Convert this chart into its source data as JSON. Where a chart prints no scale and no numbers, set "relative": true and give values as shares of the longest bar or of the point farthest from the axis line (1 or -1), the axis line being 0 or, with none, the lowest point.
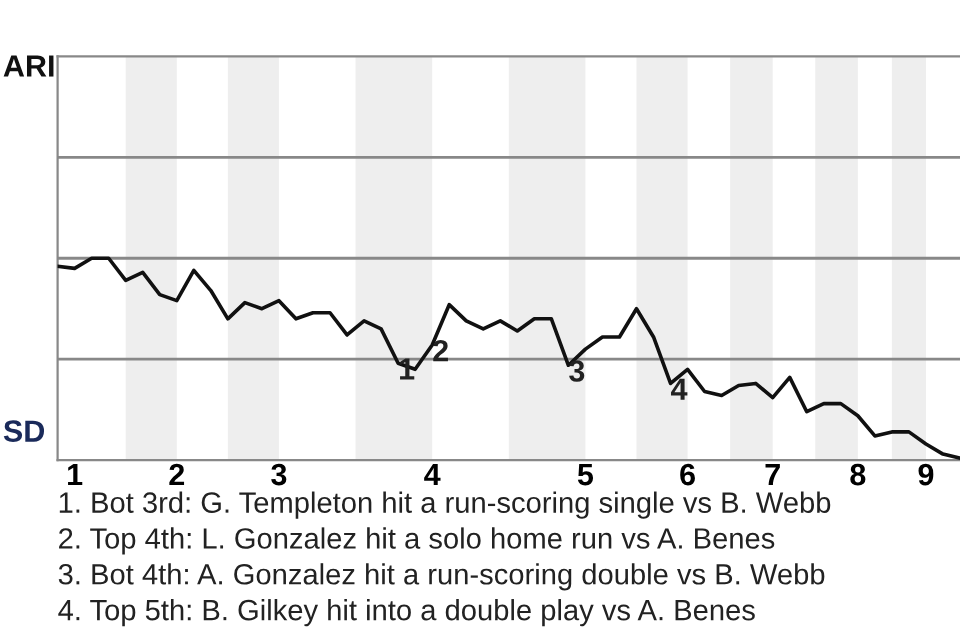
{
  "chart_data": {
    "type": "line",
    "relative": true,
    "color": "#111111",
    "categories": [
      null,
      "1",
      null,
      null,
      null,
      null,
      null,
      "2",
      null,
      null,
      null,
      null,
      null,
      "3",
      null,
      null,
      null,
      null,
      null,
      null,
      null,
      null,
      "4",
      null,
      null,
      null,
      null,
      null,
      null,
      null,
      null,
      "5",
      null,
      null,
      null,
      null,
      null,
      "6",
      null,
      null,
      null,
      null,
      "7",
      null,
      null,
      null,
      null,
      "8",
      null,
      null,
      null,
      "9",
      null,
      null
    ],
    "values": [
      0.96,
      0.95,
      1.0,
      1.0,
      0.89,
      0.93,
      0.82,
      0.79,
      0.94,
      0.84,
      0.7,
      0.78,
      0.75,
      0.79,
      0.7,
      0.73,
      0.73,
      0.62,
      0.69,
      0.65,
      0.48,
      0.45,
      0.57,
      0.77,
      0.69,
      0.65,
      0.69,
      0.64,
      0.7,
      0.7,
      0.47,
      0.55,
      0.61,
      0.61,
      0.75,
      0.61,
      0.38,
      0.45,
      0.34,
      0.32,
      0.37,
      0.38,
      0.31,
      0.41,
      0.24,
      0.28,
      0.28,
      0.22,
      0.12,
      0.14,
      0.14,
      0.08,
      0.03,
      0.01
    ],
    "ref_lines": [
      {
        "axis": "y",
        "value": 0.5,
        "color": "#888888"
      },
      {
        "axis": "y",
        "value": 1.0,
        "color": "#888888"
      },
      {
        "axis": "y",
        "value": 1.5,
        "color": "#888888"
      }
    ],
    "annotations": [
      "ARI",
      "SD",
      "1. Bot 3rd: G. Templeton hit a run-scoring single vs B. Webb",
      "2. Top 4th: L. Gonzalez hit a solo home run vs A. Benes",
      "3. Bot 4th: A. Gonzalez hit a run-scoring double vs B. Webb",
      "4. Top 5th: B. Gilkey hit into a double play vs A. Benes",
      {
        "text": "1",
        "y": 0.48
      },
      {
        "text": "2",
        "y": 0.57
      },
      {
        "text": "3",
        "y": 0.47
      },
      {
        "text": "4",
        "y": 0.38
      }
    ]
  }
}
